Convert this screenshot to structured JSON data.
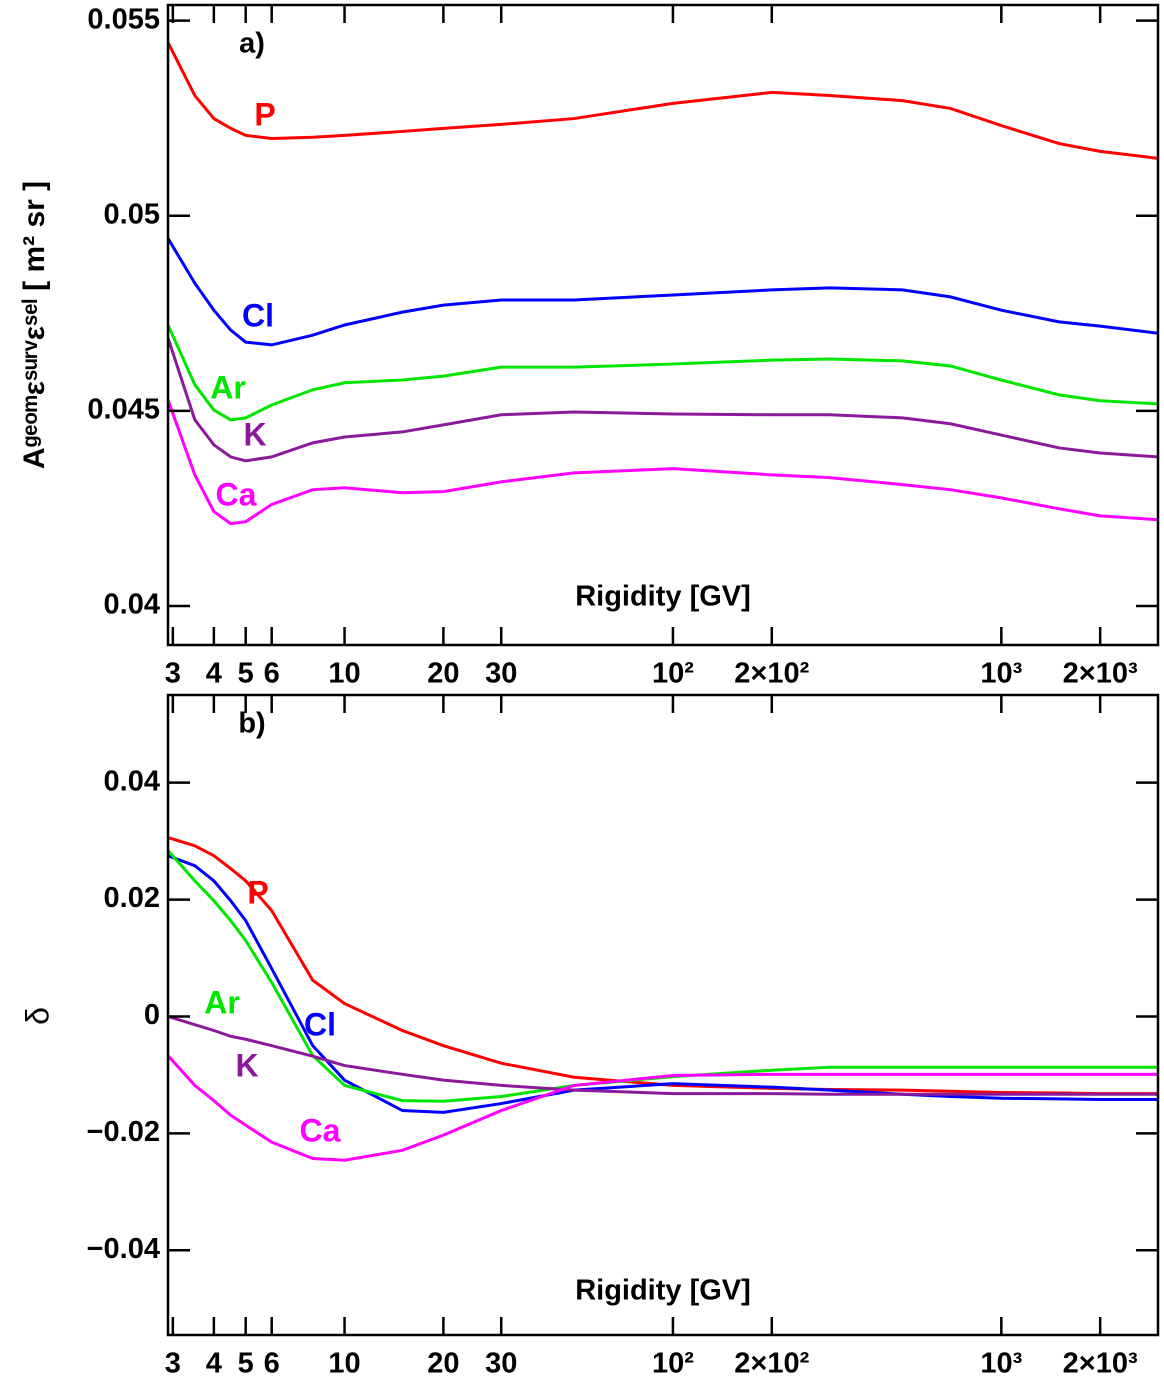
{
  "chart_data": [
    {
      "type": "line",
      "panel_label": "a)",
      "xlabel": "Rigidity [GV]",
      "ylabel": "Aᵍᵉᵒᵐεˢᵘʳᵛεˢᵉˡ [ m² sr ]",
      "xscale": "log",
      "xlim": [
        2.9,
        3000
      ],
      "ylim": [
        0.039,
        0.0554
      ],
      "xticks": [
        3,
        4,
        5,
        6,
        10,
        20,
        30,
        {
          "value": 100,
          "label": "10²"
        },
        {
          "value": 200,
          "label": "2×10²"
        },
        {
          "value": 1000,
          "label": "10³"
        },
        {
          "value": 2000,
          "label": "2×10³"
        }
      ],
      "yticks": [
        0.04,
        0.045,
        0.05,
        0.055
      ],
      "x": [
        2.9,
        3.5,
        4,
        4.5,
        5,
        6,
        8,
        10,
        15,
        20,
        30,
        50,
        100,
        200,
        300,
        500,
        700,
        1000,
        1500,
        2000,
        3000
      ],
      "series": [
        {
          "name": "P",
          "color": "#ff0000",
          "values": [
            0.05444,
            0.05308,
            0.05249,
            0.05224,
            0.05206,
            0.05198,
            0.05201,
            0.05206,
            0.05216,
            0.05224,
            0.05234,
            0.05249,
            0.05288,
            0.05316,
            0.05308,
            0.05295,
            0.05275,
            0.05231,
            0.05185,
            0.05165,
            0.05147
          ]
        },
        {
          "name": "Cl",
          "color": "#0000ff",
          "values": [
            0.04942,
            0.04827,
            0.04758,
            0.04707,
            0.04676,
            0.04669,
            0.04694,
            0.0472,
            0.04753,
            0.04771,
            0.04784,
            0.04784,
            0.04797,
            0.0481,
            0.04815,
            0.0481,
            0.04792,
            0.04758,
            0.04728,
            0.04717,
            0.04699
          ]
        },
        {
          "name": "Ar",
          "color": "#00e600",
          "values": [
            0.0472,
            0.04567,
            0.04502,
            0.04477,
            0.04482,
            0.04515,
            0.04554,
            0.04572,
            0.04579,
            0.04589,
            0.04612,
            0.04612,
            0.0462,
            0.0463,
            0.04633,
            0.04628,
            0.04615,
            0.04579,
            0.04541,
            0.04526,
            0.04518
          ]
        },
        {
          "name": "K",
          "color": "#8b1a9b",
          "values": [
            0.04687,
            0.04477,
            0.04413,
            0.04382,
            0.04372,
            0.04382,
            0.04418,
            0.04433,
            0.04446,
            0.04464,
            0.0449,
            0.04497,
            0.04492,
            0.0449,
            0.0449,
            0.04482,
            0.04467,
            0.04438,
            0.04405,
            0.04392,
            0.04382
          ]
        },
        {
          "name": "Ca",
          "color": "#ff00ff",
          "values": [
            0.04528,
            0.04336,
            0.04242,
            0.04211,
            0.04216,
            0.0426,
            0.04298,
            0.04303,
            0.0429,
            0.04293,
            0.04318,
            0.04341,
            0.04352,
            0.04336,
            0.04329,
            0.04311,
            0.04298,
            0.04277,
            0.04249,
            0.04231,
            0.04221
          ]
        }
      ]
    },
    {
      "type": "line",
      "panel_label": "b)",
      "xlabel": "Rigidity [GV]",
      "ylabel": "δ",
      "xscale": "log",
      "xlim": [
        2.9,
        3000
      ],
      "ylim": [
        -0.0545,
        0.055
      ],
      "xticks": [
        3,
        4,
        5,
        6,
        10,
        20,
        30,
        {
          "value": 100,
          "label": "10²"
        },
        {
          "value": 200,
          "label": "2×10²"
        },
        {
          "value": 1000,
          "label": "10³"
        },
        {
          "value": 2000,
          "label": "2×10³"
        }
      ],
      "yticks": [
        {
          "value": -0.04,
          "label": "−0.04"
        },
        {
          "value": -0.02,
          "label": "−0.02"
        },
        0,
        0.02,
        0.04
      ],
      "x": [
        2.9,
        3.5,
        4,
        4.5,
        5,
        6,
        8,
        10,
        15,
        20,
        30,
        50,
        100,
        200,
        300,
        500,
        700,
        1000,
        1500,
        2000,
        3000
      ],
      "series": [
        {
          "name": "P",
          "color": "#ff0000",
          "values": [
            0.0306,
            0.0292,
            0.0275,
            0.0253,
            0.0232,
            0.0181,
            0.0062,
            0.0022,
            -0.0024,
            -0.005,
            -0.008,
            -0.0104,
            -0.0118,
            -0.0123,
            -0.0125,
            -0.0126,
            -0.0128,
            -0.013,
            -0.0131,
            -0.0132,
            -0.0132
          ]
        },
        {
          "name": "Cl",
          "color": "#0000ff",
          "values": [
            0.0275,
            0.0258,
            0.0232,
            0.0198,
            0.0164,
            0.0082,
            -0.005,
            -0.0109,
            -0.0161,
            -0.0164,
            -0.0149,
            -0.0126,
            -0.0115,
            -0.0121,
            -0.0126,
            -0.0133,
            -0.0137,
            -0.014,
            -0.0141,
            -0.0142,
            -0.0142
          ]
        },
        {
          "name": "Ar",
          "color": "#00e600",
          "values": [
            0.0284,
            0.0232,
            0.0198,
            0.0164,
            0.013,
            0.0058,
            -0.0067,
            -0.0118,
            -0.0144,
            -0.0145,
            -0.0137,
            -0.0118,
            -0.0103,
            -0.0092,
            -0.0087,
            -0.0087,
            -0.0087,
            -0.0087,
            -0.0087,
            -0.0087,
            -0.0087
          ]
        },
        {
          "name": "K",
          "color": "#8b1a9b",
          "values": [
            0,
            -0.0014,
            -0.0024,
            -0.0034,
            -0.0039,
            -0.005,
            -0.0068,
            -0.0084,
            -0.0099,
            -0.0109,
            -0.0118,
            -0.0126,
            -0.0132,
            -0.0132,
            -0.0133,
            -0.0133,
            -0.0133,
            -0.0133,
            -0.0133,
            -0.0133,
            -0.0133
          ]
        },
        {
          "name": "Ca",
          "color": "#ff00ff",
          "values": [
            -0.0067,
            -0.0118,
            -0.0144,
            -0.0169,
            -0.0186,
            -0.0215,
            -0.0243,
            -0.0246,
            -0.0229,
            -0.0203,
            -0.0161,
            -0.0118,
            -0.0101,
            -0.0099,
            -0.0099,
            -0.0099,
            -0.0099,
            -0.0099,
            -0.0099,
            -0.0099,
            -0.0099
          ]
        }
      ]
    }
  ]
}
